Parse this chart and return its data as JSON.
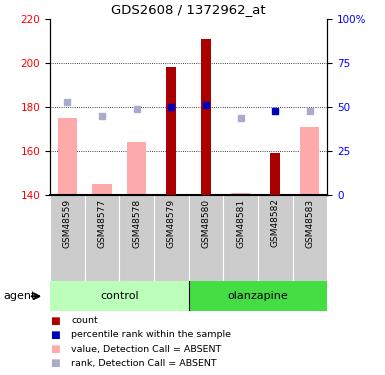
{
  "title": "GDS2608 / 1372962_at",
  "samples": [
    "GSM48559",
    "GSM48577",
    "GSM48578",
    "GSM48579",
    "GSM48580",
    "GSM48581",
    "GSM48582",
    "GSM48583"
  ],
  "red_bars": [
    null,
    null,
    null,
    198,
    211,
    null,
    159,
    null
  ],
  "pink_bars": [
    175,
    145,
    164,
    null,
    null,
    141,
    null,
    171
  ],
  "blue_squares": [
    null,
    null,
    null,
    180,
    181,
    null,
    178,
    null
  ],
  "light_blue_squares": [
    182,
    176,
    179,
    null,
    null,
    175,
    null,
    178
  ],
  "ymin": 140,
  "ymax": 220,
  "yticks_left": [
    140,
    160,
    180,
    200,
    220
  ],
  "yticks_right_vals": [
    0,
    25,
    50,
    75,
    100
  ],
  "y_right_labels": [
    "0",
    "25",
    "50",
    "75",
    "100%"
  ],
  "red_color": "#aa0000",
  "pink_color": "#ffaaaa",
  "blue_color": "#0000bb",
  "light_blue_color": "#aaaacc",
  "control_color_light": "#ccffcc",
  "control_color_dark": "#44dd44",
  "olanzapine_color": "#44dd44",
  "sample_bg": "#cccccc",
  "agent_label": "agent",
  "legend_items": [
    {
      "color": "#aa0000",
      "label": "count"
    },
    {
      "color": "#0000bb",
      "label": "percentile rank within the sample"
    },
    {
      "color": "#ffaaaa",
      "label": "value, Detection Call = ABSENT"
    },
    {
      "color": "#aaaacc",
      "label": "rank, Detection Call = ABSENT"
    }
  ]
}
